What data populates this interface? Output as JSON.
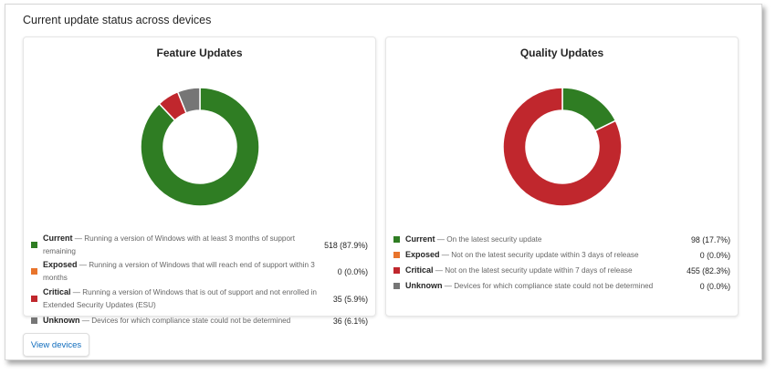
{
  "section_title": "Current update status across devices",
  "colors": {
    "current": "#2f7d23",
    "exposed": "#e8742c",
    "critical": "#c0272d",
    "unknown": "#767676"
  },
  "cards": [
    {
      "title": "Feature Updates",
      "items": [
        {
          "key": "current",
          "label": "Current",
          "desc": "— Running a version of Windows with at least 3 months of support remaining",
          "value": "518 (87.9%)",
          "count": 518
        },
        {
          "key": "exposed",
          "label": "Exposed",
          "desc": "— Running a version of Windows that will reach end of support within 3 months",
          "value": "0 (0.0%)",
          "count": 0
        },
        {
          "key": "critical",
          "label": "Critical",
          "desc": "— Running a version of Windows that is out of support and not enrolled in Extended Security Updates (ESU)",
          "value": "35 (5.9%)",
          "count": 35
        },
        {
          "key": "unknown",
          "label": "Unknown",
          "desc": "— Devices for which compliance state could not be determined",
          "value": "36 (6.1%)",
          "count": 36
        }
      ]
    },
    {
      "title": "Quality Updates",
      "items": [
        {
          "key": "current",
          "label": "Current",
          "desc": "— On the latest security update",
          "value": "98 (17.7%)",
          "count": 98
        },
        {
          "key": "exposed",
          "label": "Exposed",
          "desc": "— Not on the latest security update within 3 days of release",
          "value": "0 (0.0%)",
          "count": 0
        },
        {
          "key": "critical",
          "label": "Critical",
          "desc": "— Not on the latest security update within 7 days of release",
          "value": "455 (82.3%)",
          "count": 455
        },
        {
          "key": "unknown",
          "label": "Unknown",
          "desc": "— Devices for which compliance state could not be determined",
          "value": "0 (0.0%)",
          "count": 0
        }
      ]
    }
  ],
  "view_devices_label": "View devices"
}
